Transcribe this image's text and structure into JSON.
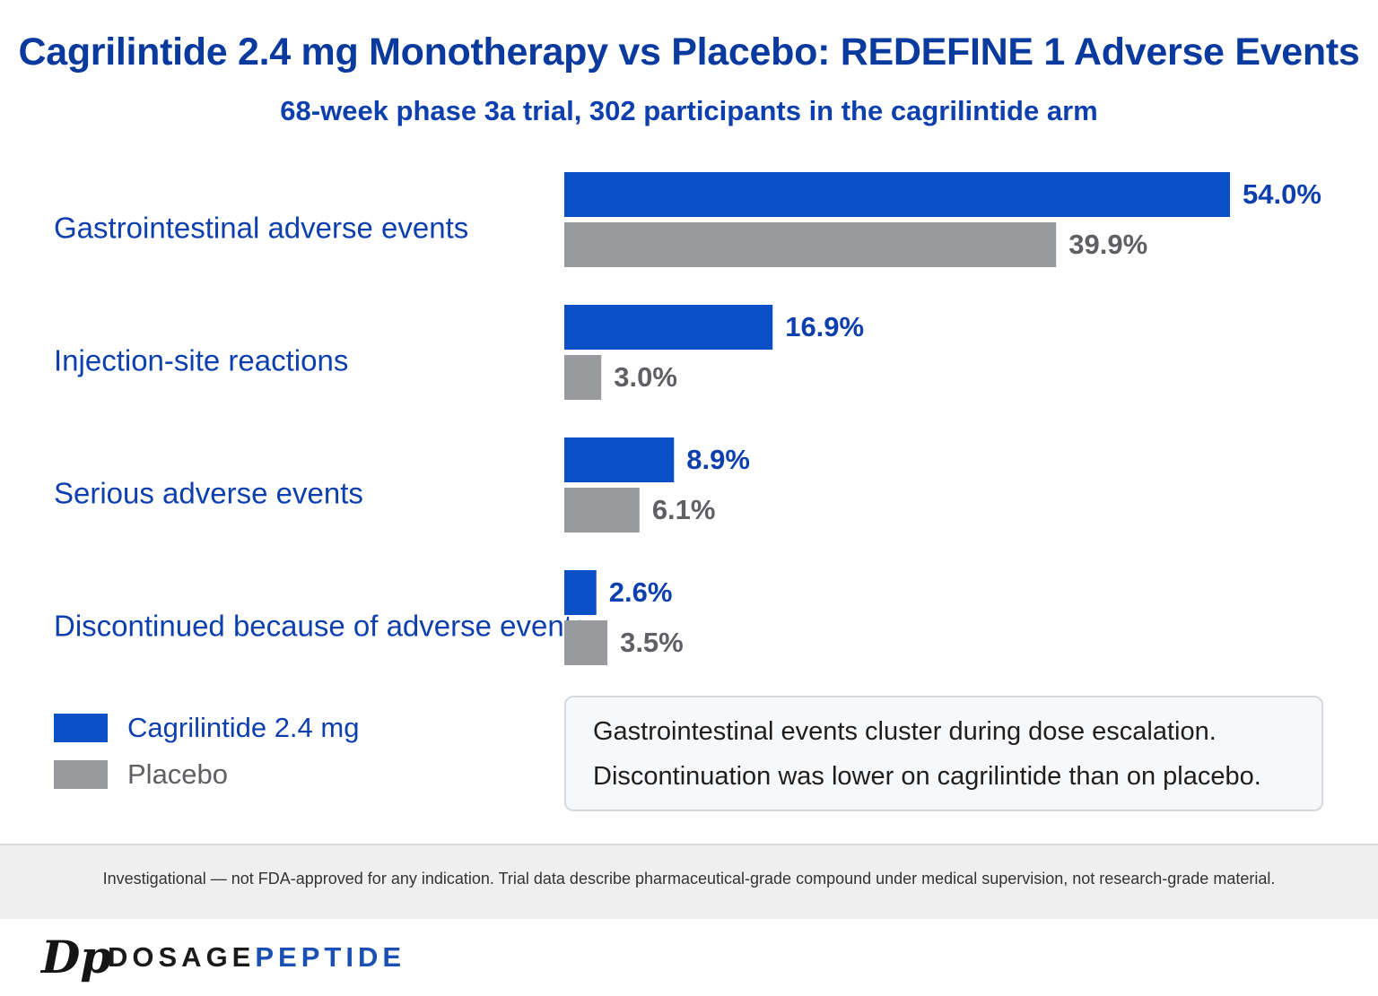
{
  "header": {
    "title": "Cagrilintide 2.4 mg Monotherapy vs Placebo: REDEFINE 1 Adverse Events",
    "subtitle": "68-week phase 3a trial, 302 participants in the cagrilintide arm"
  },
  "colors": {
    "cagrilintide": "#0a4fc6",
    "placebo": "#999a9d",
    "category_text": "#0d3fae",
    "placebo_text": "#5f6063"
  },
  "chart_data": {
    "type": "bar",
    "orientation": "horizontal",
    "categories": [
      "Gastrointestinal adverse events",
      "Injection-site reactions",
      "Serious adverse events",
      "Discontinued because of adverse events"
    ],
    "series": [
      {
        "name": "Cagrilintide 2.4 mg",
        "values": [
          54.0,
          16.9,
          8.9,
          2.6
        ],
        "labels": [
          "54.0%",
          "16.9%",
          "8.9%",
          "2.6%"
        ]
      },
      {
        "name": "Placebo",
        "values": [
          39.9,
          3.0,
          6.1,
          3.5
        ],
        "labels": [
          "39.9%",
          "3.0%",
          "6.1%",
          "3.5%"
        ]
      }
    ],
    "unit": "%",
    "xlim": [
      0,
      54.0
    ],
    "grid": false,
    "legend_position": "bottom-left"
  },
  "legend": {
    "items": [
      {
        "label": "Cagrilintide 2.4 mg"
      },
      {
        "label": "Placebo"
      }
    ]
  },
  "note": {
    "lines": [
      "Gastrointestinal events cluster during dose escalation.",
      "Discontinuation was lower on cagrilintide than on placebo."
    ]
  },
  "footer": {
    "disclaimer": "Investigational — not FDA-approved for any indication. Trial data describe pharmaceutical-grade compound under medical supervision, not research-grade material."
  },
  "brand": {
    "mark": "Dp",
    "name_part1": "DOSAGE",
    "name_part2": "PEPTIDE"
  }
}
